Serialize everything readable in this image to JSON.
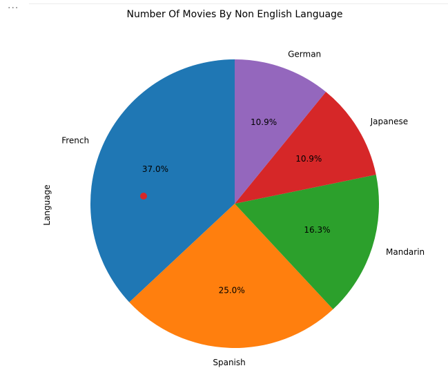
{
  "menu": {
    "icon": "ellipsis-icon",
    "text": "···"
  },
  "chart_data": {
    "type": "pie",
    "title": "Number Of Movies By Non English Language",
    "ylabel": "Language",
    "startangle": 90,
    "direction": "counterclockwise",
    "slices": [
      {
        "label": "French",
        "percent": 37.0,
        "pct_label": "37.0%",
        "color": "#1f77b4"
      },
      {
        "label": "Spanish",
        "percent": 25.0,
        "pct_label": "25.0%",
        "color": "#ff7f0e"
      },
      {
        "label": "Mandarin",
        "percent": 16.3,
        "pct_label": "16.3%",
        "color": "#2ca02c"
      },
      {
        "label": "Japanese",
        "percent": 10.9,
        "pct_label": "10.9%",
        "color": "#d62728"
      },
      {
        "label": "German",
        "percent": 10.9,
        "pct_label": "10.9%",
        "color": "#9467bd"
      }
    ],
    "marker": {
      "color": "#d62728"
    }
  }
}
